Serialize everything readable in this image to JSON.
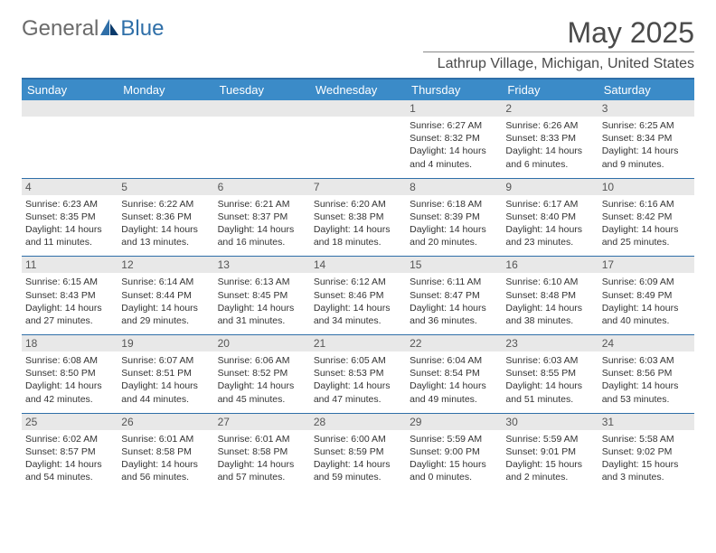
{
  "brand": {
    "part1": "General",
    "part2": "Blue"
  },
  "title": "May 2025",
  "location": "Lathrup Village, Michigan, United States",
  "colors": {
    "header_bg": "#3b8bc8",
    "header_text": "#ffffff",
    "datenum_bg": "#e8e8e8",
    "border": "#2f6fa8",
    "text": "#333333",
    "title_color": "#4a4a4a"
  },
  "weekdays": [
    "Sunday",
    "Monday",
    "Tuesday",
    "Wednesday",
    "Thursday",
    "Friday",
    "Saturday"
  ],
  "weeks": [
    [
      {
        "date": "",
        "lines": [
          "",
          "",
          "",
          ""
        ]
      },
      {
        "date": "",
        "lines": [
          "",
          "",
          "",
          ""
        ]
      },
      {
        "date": "",
        "lines": [
          "",
          "",
          "",
          ""
        ]
      },
      {
        "date": "",
        "lines": [
          "",
          "",
          "",
          ""
        ]
      },
      {
        "date": "1",
        "lines": [
          "Sunrise: 6:27 AM",
          "Sunset: 8:32 PM",
          "Daylight: 14 hours",
          "and 4 minutes."
        ]
      },
      {
        "date": "2",
        "lines": [
          "Sunrise: 6:26 AM",
          "Sunset: 8:33 PM",
          "Daylight: 14 hours",
          "and 6 minutes."
        ]
      },
      {
        "date": "3",
        "lines": [
          "Sunrise: 6:25 AM",
          "Sunset: 8:34 PM",
          "Daylight: 14 hours",
          "and 9 minutes."
        ]
      }
    ],
    [
      {
        "date": "4",
        "lines": [
          "Sunrise: 6:23 AM",
          "Sunset: 8:35 PM",
          "Daylight: 14 hours",
          "and 11 minutes."
        ]
      },
      {
        "date": "5",
        "lines": [
          "Sunrise: 6:22 AM",
          "Sunset: 8:36 PM",
          "Daylight: 14 hours",
          "and 13 minutes."
        ]
      },
      {
        "date": "6",
        "lines": [
          "Sunrise: 6:21 AM",
          "Sunset: 8:37 PM",
          "Daylight: 14 hours",
          "and 16 minutes."
        ]
      },
      {
        "date": "7",
        "lines": [
          "Sunrise: 6:20 AM",
          "Sunset: 8:38 PM",
          "Daylight: 14 hours",
          "and 18 minutes."
        ]
      },
      {
        "date": "8",
        "lines": [
          "Sunrise: 6:18 AM",
          "Sunset: 8:39 PM",
          "Daylight: 14 hours",
          "and 20 minutes."
        ]
      },
      {
        "date": "9",
        "lines": [
          "Sunrise: 6:17 AM",
          "Sunset: 8:40 PM",
          "Daylight: 14 hours",
          "and 23 minutes."
        ]
      },
      {
        "date": "10",
        "lines": [
          "Sunrise: 6:16 AM",
          "Sunset: 8:42 PM",
          "Daylight: 14 hours",
          "and 25 minutes."
        ]
      }
    ],
    [
      {
        "date": "11",
        "lines": [
          "Sunrise: 6:15 AM",
          "Sunset: 8:43 PM",
          "Daylight: 14 hours",
          "and 27 minutes."
        ]
      },
      {
        "date": "12",
        "lines": [
          "Sunrise: 6:14 AM",
          "Sunset: 8:44 PM",
          "Daylight: 14 hours",
          "and 29 minutes."
        ]
      },
      {
        "date": "13",
        "lines": [
          "Sunrise: 6:13 AM",
          "Sunset: 8:45 PM",
          "Daylight: 14 hours",
          "and 31 minutes."
        ]
      },
      {
        "date": "14",
        "lines": [
          "Sunrise: 6:12 AM",
          "Sunset: 8:46 PM",
          "Daylight: 14 hours",
          "and 34 minutes."
        ]
      },
      {
        "date": "15",
        "lines": [
          "Sunrise: 6:11 AM",
          "Sunset: 8:47 PM",
          "Daylight: 14 hours",
          "and 36 minutes."
        ]
      },
      {
        "date": "16",
        "lines": [
          "Sunrise: 6:10 AM",
          "Sunset: 8:48 PM",
          "Daylight: 14 hours",
          "and 38 minutes."
        ]
      },
      {
        "date": "17",
        "lines": [
          "Sunrise: 6:09 AM",
          "Sunset: 8:49 PM",
          "Daylight: 14 hours",
          "and 40 minutes."
        ]
      }
    ],
    [
      {
        "date": "18",
        "lines": [
          "Sunrise: 6:08 AM",
          "Sunset: 8:50 PM",
          "Daylight: 14 hours",
          "and 42 minutes."
        ]
      },
      {
        "date": "19",
        "lines": [
          "Sunrise: 6:07 AM",
          "Sunset: 8:51 PM",
          "Daylight: 14 hours",
          "and 44 minutes."
        ]
      },
      {
        "date": "20",
        "lines": [
          "Sunrise: 6:06 AM",
          "Sunset: 8:52 PM",
          "Daylight: 14 hours",
          "and 45 minutes."
        ]
      },
      {
        "date": "21",
        "lines": [
          "Sunrise: 6:05 AM",
          "Sunset: 8:53 PM",
          "Daylight: 14 hours",
          "and 47 minutes."
        ]
      },
      {
        "date": "22",
        "lines": [
          "Sunrise: 6:04 AM",
          "Sunset: 8:54 PM",
          "Daylight: 14 hours",
          "and 49 minutes."
        ]
      },
      {
        "date": "23",
        "lines": [
          "Sunrise: 6:03 AM",
          "Sunset: 8:55 PM",
          "Daylight: 14 hours",
          "and 51 minutes."
        ]
      },
      {
        "date": "24",
        "lines": [
          "Sunrise: 6:03 AM",
          "Sunset: 8:56 PM",
          "Daylight: 14 hours",
          "and 53 minutes."
        ]
      }
    ],
    [
      {
        "date": "25",
        "lines": [
          "Sunrise: 6:02 AM",
          "Sunset: 8:57 PM",
          "Daylight: 14 hours",
          "and 54 minutes."
        ]
      },
      {
        "date": "26",
        "lines": [
          "Sunrise: 6:01 AM",
          "Sunset: 8:58 PM",
          "Daylight: 14 hours",
          "and 56 minutes."
        ]
      },
      {
        "date": "27",
        "lines": [
          "Sunrise: 6:01 AM",
          "Sunset: 8:58 PM",
          "Daylight: 14 hours",
          "and 57 minutes."
        ]
      },
      {
        "date": "28",
        "lines": [
          "Sunrise: 6:00 AM",
          "Sunset: 8:59 PM",
          "Daylight: 14 hours",
          "and 59 minutes."
        ]
      },
      {
        "date": "29",
        "lines": [
          "Sunrise: 5:59 AM",
          "Sunset: 9:00 PM",
          "Daylight: 15 hours",
          "and 0 minutes."
        ]
      },
      {
        "date": "30",
        "lines": [
          "Sunrise: 5:59 AM",
          "Sunset: 9:01 PM",
          "Daylight: 15 hours",
          "and 2 minutes."
        ]
      },
      {
        "date": "31",
        "lines": [
          "Sunrise: 5:58 AM",
          "Sunset: 9:02 PM",
          "Daylight: 15 hours",
          "and 3 minutes."
        ]
      }
    ]
  ]
}
